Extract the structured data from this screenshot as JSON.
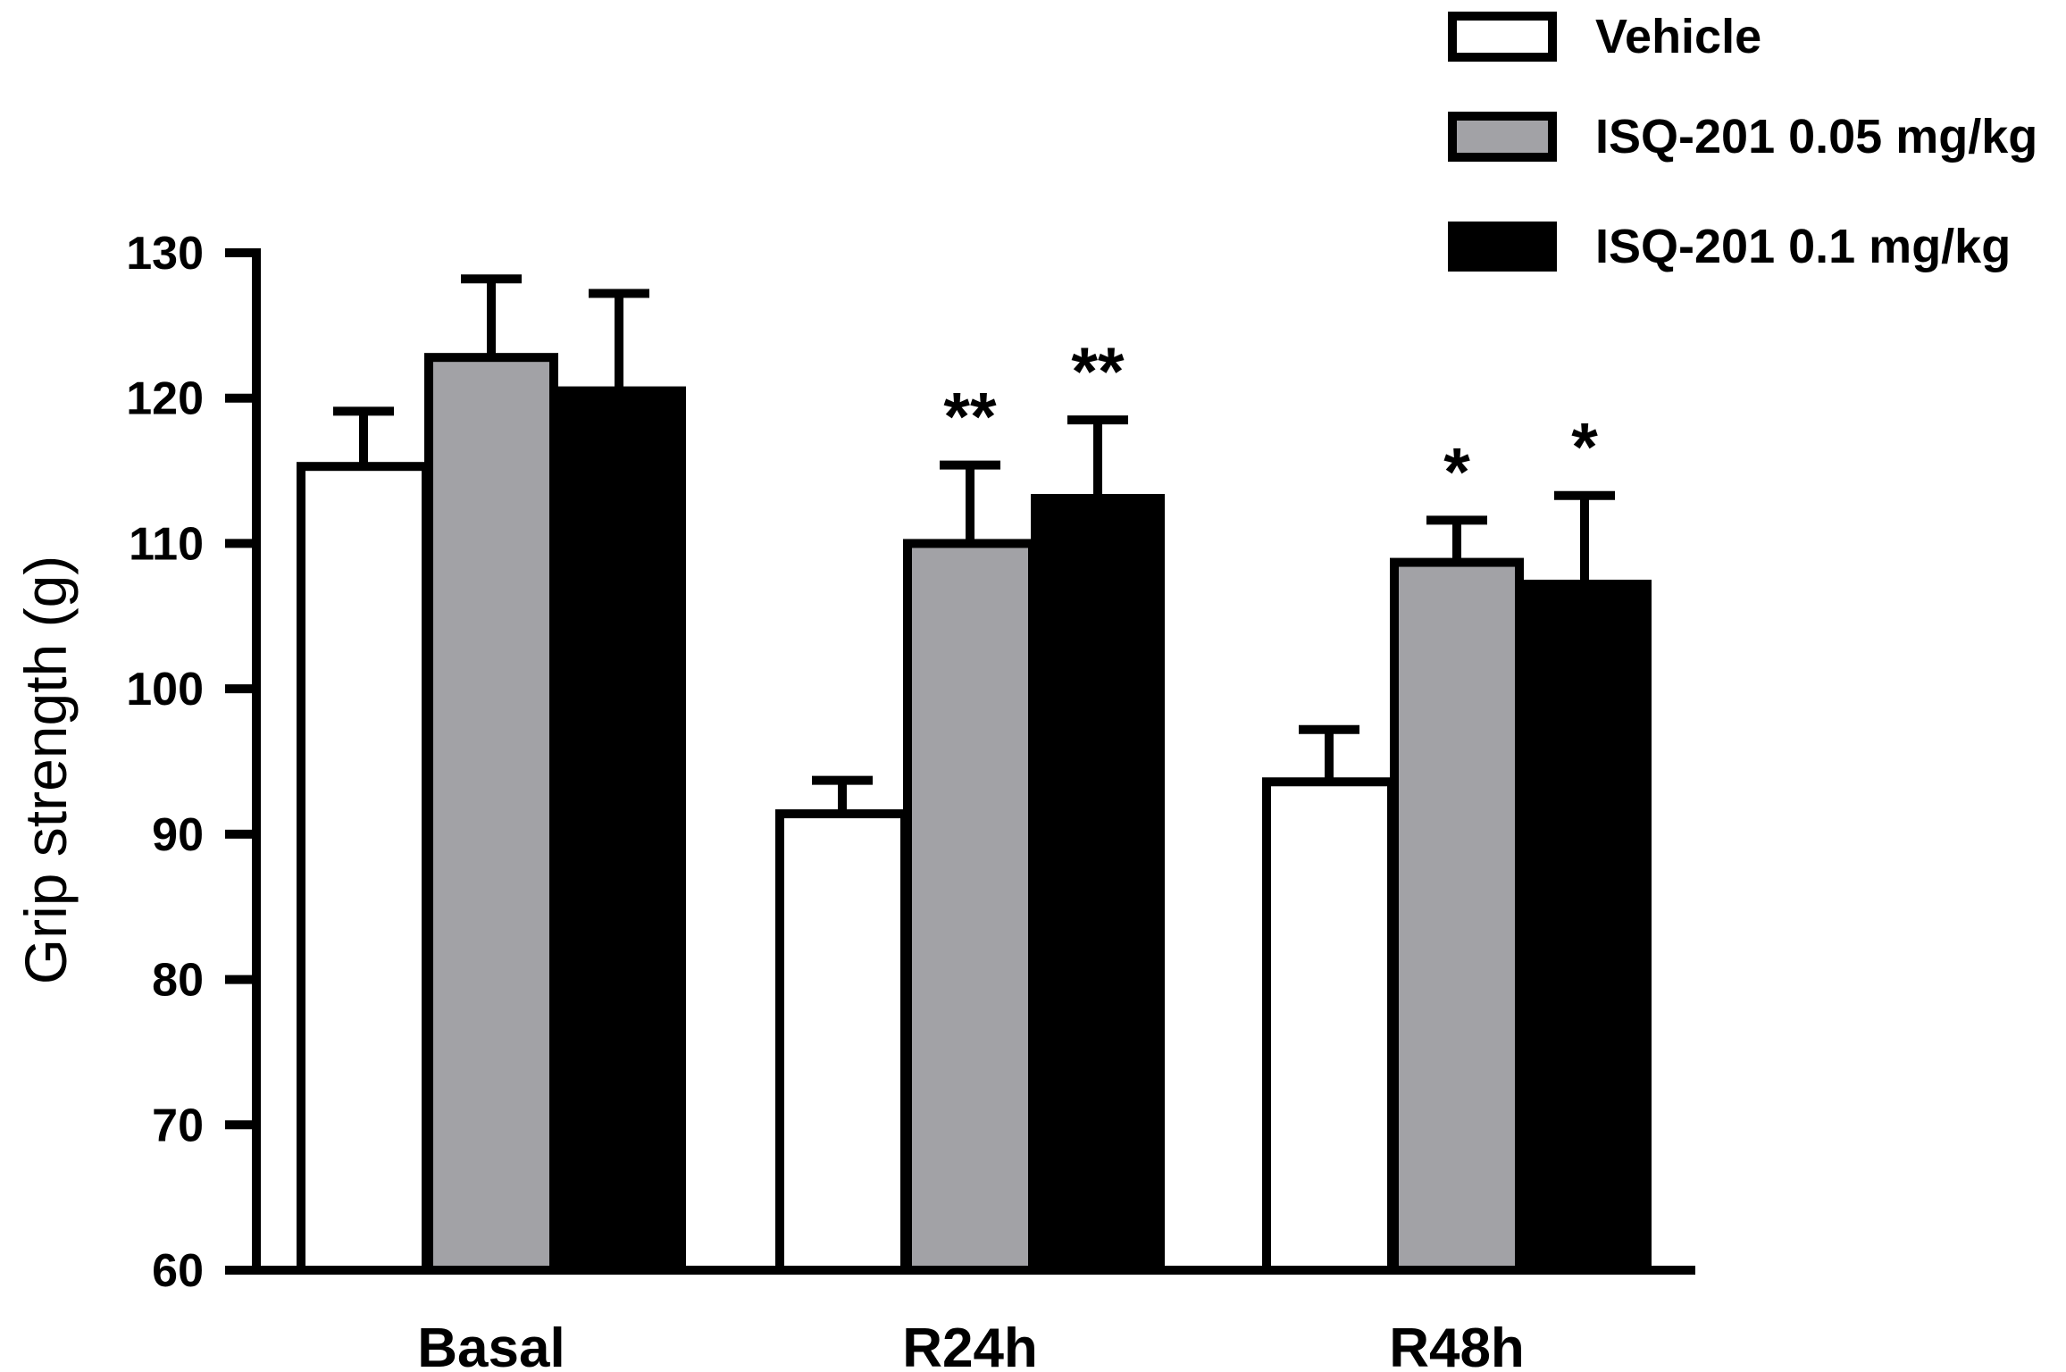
{
  "chart_data": {
    "type": "bar",
    "title": "",
    "xlabel": "",
    "ylabel": "Grip strength (g)",
    "ylim": [
      60,
      130
    ],
    "yticks": [
      "60",
      "70",
      "80",
      "90",
      "100",
      "110",
      "120",
      "130"
    ],
    "categories": [
      "Basal",
      "R24h",
      "R48h"
    ],
    "grid": false,
    "legend_position": "top-right",
    "series": [
      {
        "name": "Vehicle",
        "color": "#ffffff",
        "values": [
          115.3,
          91.4,
          93.6
        ],
        "errors": [
          3.8,
          2.3,
          3.6
        ],
        "significance": [
          "",
          "",
          ""
        ]
      },
      {
        "name": "ISQ-201 0.05 mg/kg",
        "color": "#a2a2a6",
        "values": [
          122.8,
          110.0,
          108.7
        ],
        "errors": [
          5.4,
          5.4,
          2.9
        ],
        "significance": [
          "",
          "**",
          "*"
        ]
      },
      {
        "name": "ISQ-201 0.1 mg/kg",
        "color": "#000000",
        "values": [
          120.5,
          113.1,
          107.2
        ],
        "errors": [
          6.7,
          5.4,
          6.1
        ],
        "significance": [
          "",
          "**",
          "*"
        ]
      }
    ]
  }
}
